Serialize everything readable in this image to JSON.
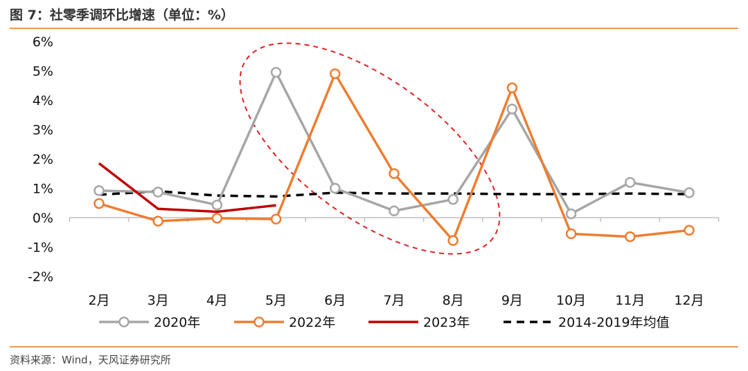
{
  "header": {
    "title": "图 7：社零季调环比增速（单位：%）"
  },
  "footer": {
    "source": "资料来源：Wind，天风证券研究所"
  },
  "chart_data": {
    "type": "line",
    "categories": [
      "2月",
      "3月",
      "4月",
      "5月",
      "6月",
      "7月",
      "8月",
      "9月",
      "10月",
      "11月",
      "12月"
    ],
    "ylim": [
      -2,
      6
    ],
    "yticks": [
      -2,
      -1,
      0,
      1,
      2,
      3,
      4,
      5,
      6
    ],
    "ytick_labels": [
      "-2%",
      "-1%",
      "0%",
      "1%",
      "2%",
      "3%",
      "4%",
      "5%",
      "6%"
    ],
    "xlabel": "",
    "ylabel": "",
    "grid": false,
    "legend_position": "bottom",
    "series": [
      {
        "name": "2020年",
        "color": "#a6a6a6",
        "marker": "circle",
        "dash": "solid",
        "values": [
          0.92,
          0.87,
          0.43,
          4.95,
          1.0,
          0.23,
          0.62,
          3.7,
          0.13,
          1.2,
          0.85
        ]
      },
      {
        "name": "2022年",
        "color": "#ed7d31",
        "marker": "circle",
        "dash": "solid",
        "values": [
          0.48,
          -0.12,
          -0.02,
          -0.05,
          4.9,
          1.5,
          -0.78,
          4.42,
          -0.55,
          -0.65,
          -0.43
        ]
      },
      {
        "name": "2023年",
        "color": "#c00000",
        "marker": "none",
        "dash": "solid",
        "values": [
          1.85,
          0.3,
          0.2,
          0.42,
          null,
          null,
          null,
          null,
          null,
          null,
          null
        ]
      },
      {
        "name": "2014-2019年均值",
        "color": "#000000",
        "marker": "none",
        "dash": "dashed",
        "values": [
          0.78,
          0.9,
          0.75,
          0.72,
          0.85,
          0.82,
          0.82,
          0.8,
          0.8,
          0.82,
          0.8
        ]
      }
    ],
    "annotation": {
      "shape": "dashed-ellipse",
      "color": "#e02020",
      "highlights": [
        "5月",
        "6月",
        "7月",
        "8月"
      ]
    }
  }
}
